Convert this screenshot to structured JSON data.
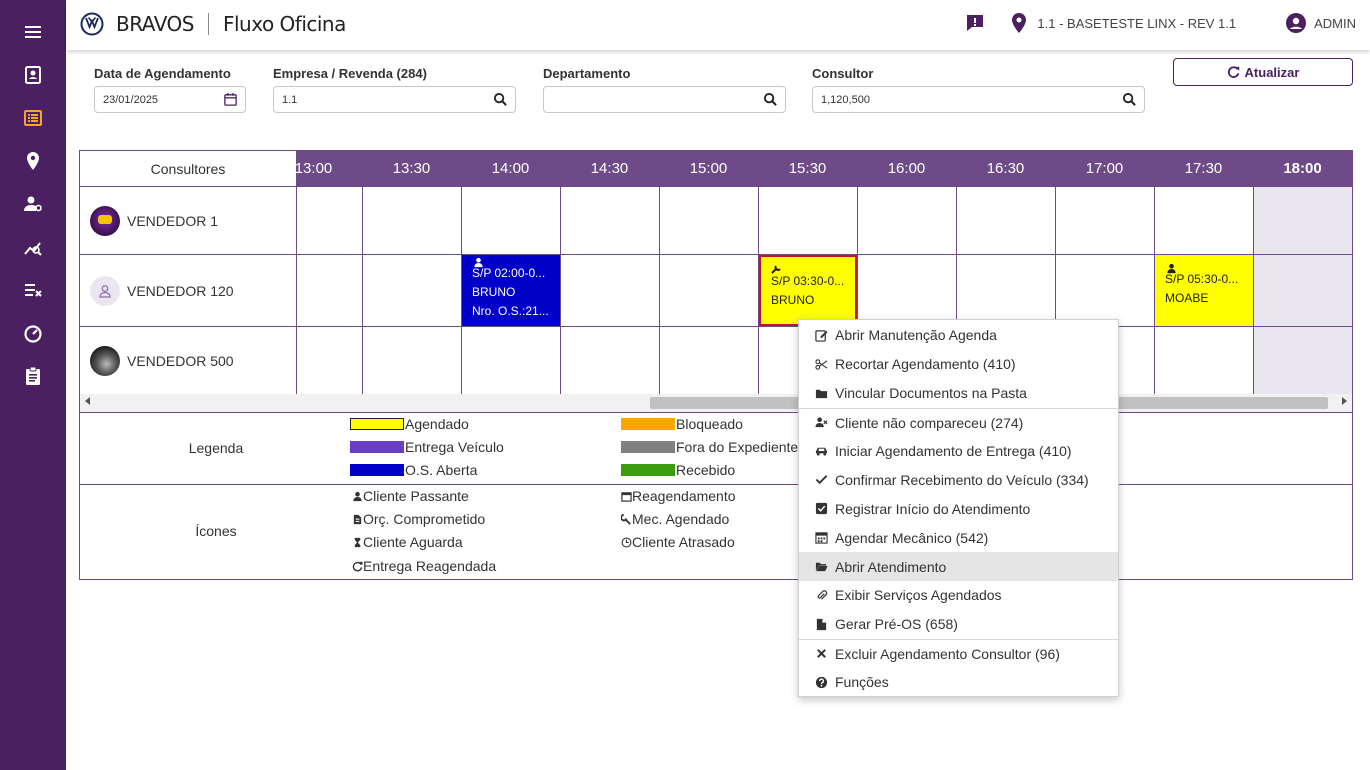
{
  "app": {
    "brand": "BRAVOS",
    "module": "Fluxo Oficina"
  },
  "topbar": {
    "location": "1.1 - BASETESTE LINX - REV 1.1",
    "user": "ADMIN"
  },
  "sidebar": {
    "items": [
      "menu-icon",
      "contacts-icon",
      "list-icon",
      "location-icon",
      "user-settings-icon",
      "chart-icon",
      "task-list-icon",
      "speedometer-icon",
      "clipboard-icon"
    ]
  },
  "filters": {
    "data_label": "Data de Agendamento",
    "data_value": "23/01/2025",
    "empresa_label": "Empresa / Revenda (284)",
    "empresa_value": "1.1",
    "departamento_label": "Departamento",
    "departamento_value": "",
    "consultor_label": "Consultor",
    "consultor_value": "1,120,500",
    "atualizar_label": "Atualizar"
  },
  "grid": {
    "consultores_label": "Consultores",
    "times": [
      "13:00",
      "13:30",
      "14:00",
      "14:30",
      "15:00",
      "15:30",
      "16:00",
      "16:30",
      "17:00",
      "17:30",
      "18:00"
    ],
    "rows": [
      {
        "name": "VENDEDOR 1"
      },
      {
        "name": "VENDEDOR 120"
      },
      {
        "name": "VENDEDOR 500"
      }
    ],
    "appointments": [
      {
        "line1": "S/P 02:00-0...",
        "line2": "BRUNO",
        "line3": "Nro. O.S.:21...",
        "color": "#0000c8"
      },
      {
        "line1": "S/P 03:30-0...",
        "line2": "BRUNO",
        "color": "#ffff00"
      },
      {
        "line1": "S/P 05:30-0...",
        "line2": "MOABE",
        "color": "#ffff00"
      }
    ]
  },
  "legend": {
    "legenda_title": "Legenda",
    "icones_title": "Ícones",
    "colors": [
      {
        "label": "Agendado",
        "color": "#ffff00"
      },
      {
        "label": "Entrega Veículo",
        "color": "#6a3fc4"
      },
      {
        "label": "O.S. Aberta",
        "color": "#0000c8"
      },
      {
        "label": "Bloqueado",
        "color": "#ffa500"
      },
      {
        "label": "Fora do Expediente",
        "color": "#808080"
      },
      {
        "label": "Recebido",
        "color": "#3c9c10"
      }
    ],
    "icons": [
      {
        "label": "Cliente Passante",
        "icon": "user-icon"
      },
      {
        "label": "Orç. Comprometido",
        "icon": "file-icon"
      },
      {
        "label": "Cliente Aguarda",
        "icon": "hourglass-icon"
      },
      {
        "label": "Entrega Reagendada",
        "icon": "refresh-icon"
      },
      {
        "label": "Reagendamento",
        "icon": "calendar-icon"
      },
      {
        "label": "Mec. Agendado",
        "icon": "wrench-icon"
      },
      {
        "label": "Cliente Atrasado",
        "icon": "clock-icon"
      }
    ]
  },
  "context_menu": {
    "items": [
      "Abrir Manutenção Agenda",
      "Recortar Agendamento (410)",
      "Vincular Documentos na Pasta",
      "Cliente não compareceu (274)",
      "Iniciar Agendamento de Entrega (410)",
      "Confirmar Recebimento do Veículo (334)",
      "Registrar Início do Atendimento",
      "Agendar Mecânico (542)",
      "Abrir Atendimento",
      "Exibir Serviços Agendados",
      "Gerar Pré-OS (658)",
      "Excluir Agendamento Consultor (96)",
      "Funções"
    ]
  }
}
